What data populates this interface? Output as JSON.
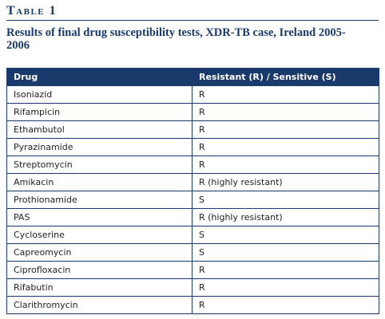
{
  "table_label": "Table 1",
  "caption": "Results of final drug susceptibility tests, XDR-TB case, Ireland 2005-2006",
  "columns": [
    "Drug",
    "Resistant (R) / Sensitive (S)"
  ],
  "rows": [
    [
      "Isoniazid",
      "R"
    ],
    [
      "Rifampicin",
      "R"
    ],
    [
      "Ethambutol",
      "R"
    ],
    [
      "Pyrazinamide",
      "R"
    ],
    [
      "Streptomycin",
      "R"
    ],
    [
      "Amikacin",
      "R (highly resistant)"
    ],
    [
      "Prothionamide",
      "S"
    ],
    [
      "PAS",
      "R (highly resistant)"
    ],
    [
      "Cycloserine",
      "S"
    ],
    [
      "Capreomycin",
      "S"
    ],
    [
      "Ciprofloxacin",
      "R"
    ],
    [
      "Rifabutin",
      "R"
    ],
    [
      "Clarithromycin",
      "R"
    ]
  ],
  "colors": {
    "accent": "#1a3a6b"
  }
}
